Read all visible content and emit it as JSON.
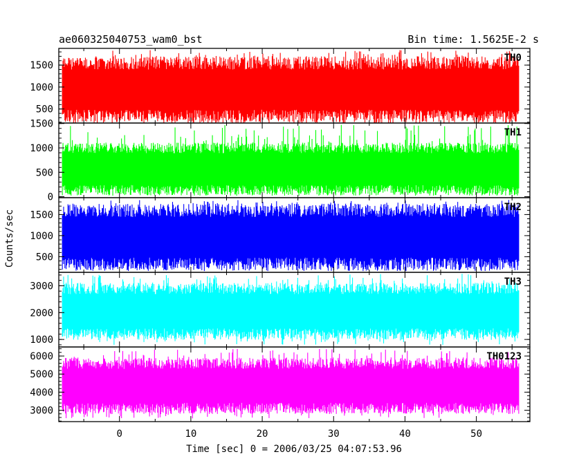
{
  "chart_data": {
    "type": "line",
    "title": "ae060325040753_wam0_bst",
    "subtitle": "Bin time: 1.5625E-2 s",
    "xlabel": "Time [sec] 0 = 2006/03/25 04:07:53.96",
    "ylabel": "Counts/sec",
    "xlim": [
      -8.5,
      57.5
    ],
    "data_x_range": [
      -8,
      56
    ],
    "x_ticks": [
      0,
      10,
      20,
      30,
      40,
      50
    ],
    "x_tick_labels": [
      "0",
      "10",
      "20",
      "30",
      "40",
      "50"
    ],
    "panels": [
      {
        "name": "TH0",
        "color": "#ff0000",
        "ylim": [
          180,
          1880
        ],
        "y_ticks": [
          500,
          1000,
          1500
        ],
        "y_tick_labels": [
          "500",
          "1000",
          "1500"
        ],
        "mean": 900,
        "band_low": 330,
        "band_high": 1550,
        "spike_min": 160,
        "spike_max": 1850
      },
      {
        "name": "TH1",
        "color": "#00ff00",
        "ylim": [
          -20,
          1510
        ],
        "y_ticks": [
          0,
          500,
          1000,
          1500
        ],
        "y_tick_labels": [
          "0",
          "500",
          "1000",
          "1500"
        ],
        "mean": 550,
        "band_low": 130,
        "band_high": 1000,
        "spike_min": 40,
        "spike_max": 1480
      },
      {
        "name": "TH2",
        "color": "#0000ff",
        "ylim": [
          130,
          1900
        ],
        "y_ticks": [
          500,
          1000,
          1500
        ],
        "y_tick_labels": [
          "500",
          "1000",
          "1500"
        ],
        "mean": 1000,
        "band_low": 320,
        "band_high": 1600,
        "spike_min": 170,
        "spike_max": 1850
      },
      {
        "name": "TH3",
        "color": "#00ffff",
        "ylim": [
          720,
          3500
        ],
        "y_ticks": [
          1000,
          2000,
          3000
        ],
        "y_tick_labels": [
          "1000",
          "2000",
          "3000"
        ],
        "mean": 2050,
        "band_low": 1200,
        "band_high": 2900,
        "spike_min": 800,
        "spike_max": 3450
      },
      {
        "name": "TH0123",
        "color": "#ff00ff",
        "ylim": [
          2370,
          6500
        ],
        "y_ticks": [
          3000,
          4000,
          5000,
          6000
        ],
        "y_tick_labels": [
          "3000",
          "4000",
          "5000",
          "6000"
        ],
        "mean": 4300,
        "band_low": 3100,
        "band_high": 5600,
        "spike_min": 2550,
        "spike_max": 6400
      }
    ],
    "grid": false,
    "legend": "panel labels top-right"
  }
}
